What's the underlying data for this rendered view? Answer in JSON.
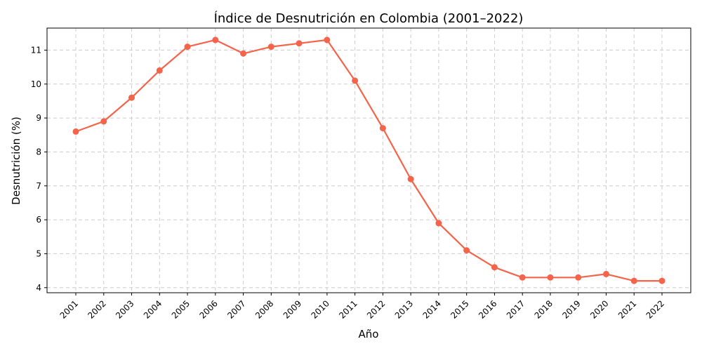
{
  "chart_data": {
    "type": "line",
    "title": "Índice de Desnutrición en Colombia (2001–2022)",
    "xlabel": "Año",
    "ylabel": "Desnutrición (%)",
    "x": [
      "2001",
      "2002",
      "2003",
      "2004",
      "2005",
      "2006",
      "2007",
      "2008",
      "2009",
      "2010",
      "2011",
      "2012",
      "2013",
      "2014",
      "2015",
      "2016",
      "2017",
      "2018",
      "2019",
      "2020",
      "2021",
      "2022"
    ],
    "values": [
      8.6,
      8.9,
      9.6,
      10.4,
      11.1,
      11.3,
      10.9,
      11.1,
      11.2,
      11.3,
      10.1,
      8.7,
      7.2,
      5.9,
      5.1,
      4.6,
      4.3,
      4.3,
      4.3,
      4.4,
      4.2,
      4.2
    ],
    "ylim": [
      3.85,
      11.65
    ],
    "yticks": [
      4,
      5,
      6,
      7,
      8,
      9,
      10,
      11
    ],
    "grid": true,
    "line_color": "#f4644a"
  }
}
